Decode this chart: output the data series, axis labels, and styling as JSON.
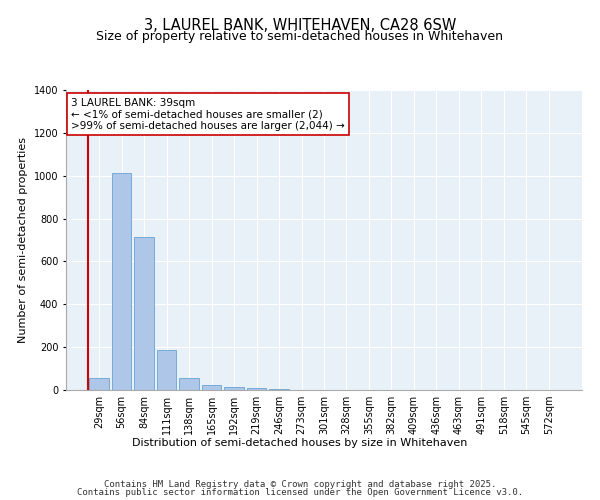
{
  "title": "3, LAUREL BANK, WHITEHAVEN, CA28 6SW",
  "subtitle": "Size of property relative to semi-detached houses in Whitehaven",
  "xlabel": "Distribution of semi-detached houses by size in Whitehaven",
  "ylabel": "Number of semi-detached properties",
  "categories": [
    "29sqm",
    "56sqm",
    "84sqm",
    "111sqm",
    "138sqm",
    "165sqm",
    "192sqm",
    "219sqm",
    "246sqm",
    "273sqm",
    "301sqm",
    "328sqm",
    "355sqm",
    "382sqm",
    "409sqm",
    "436sqm",
    "463sqm",
    "491sqm",
    "518sqm",
    "545sqm",
    "572sqm"
  ],
  "bar_heights": [
    56,
    1015,
    715,
    185,
    55,
    25,
    15,
    10,
    3,
    1,
    0,
    0,
    0,
    0,
    0,
    0,
    0,
    0,
    0,
    0,
    0
  ],
  "bar_color": "#aec6e8",
  "bar_edge_color": "#5599cc",
  "highlight_color": "#cc0000",
  "ylim": [
    0,
    1400
  ],
  "yticks": [
    0,
    200,
    400,
    600,
    800,
    1000,
    1200,
    1400
  ],
  "annotation_line1": "3 LAUREL BANK: 39sqm",
  "annotation_line2": "← <1% of semi-detached houses are smaller (2)",
  "annotation_line3": ">99% of semi-detached houses are larger (2,044) →",
  "footer_line1": "Contains HM Land Registry data © Crown copyright and database right 2025.",
  "footer_line2": "Contains public sector information licensed under the Open Government Licence v3.0.",
  "background_color": "#e8f0f8",
  "grid_color": "#ffffff",
  "title_fontsize": 10.5,
  "subtitle_fontsize": 9,
  "axis_label_fontsize": 8,
  "tick_fontsize": 7,
  "footer_fontsize": 6.5,
  "annot_fontsize": 7.5
}
